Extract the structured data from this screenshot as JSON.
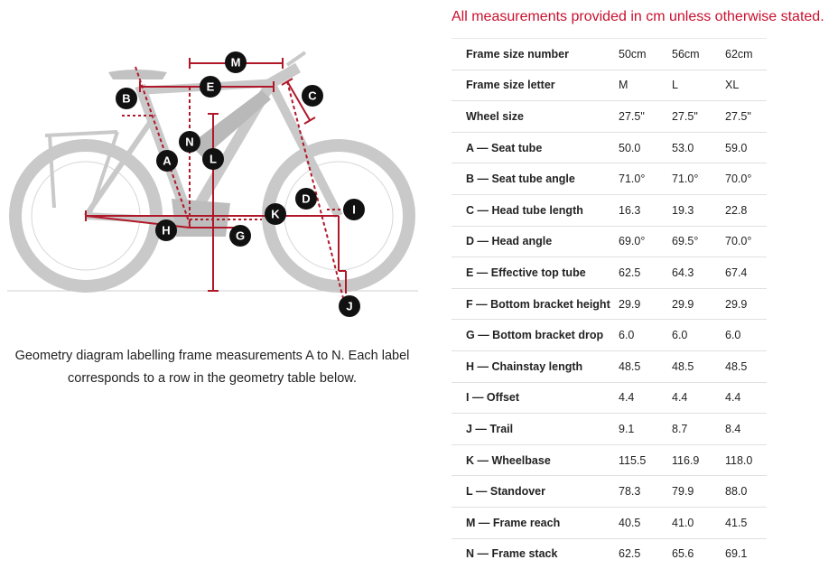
{
  "notice": "All measurements provided in cm unless otherwise stated.",
  "caption": "Geometry diagram labelling frame measurements A to N. Each label corresponds to a row in the geometry table below.",
  "colors": {
    "accent": "#c8102e",
    "measure_line": "#b0182a",
    "label_bg": "#111111",
    "bike": "#c9c9c9"
  },
  "diagram": {
    "labels": [
      "A",
      "B",
      "C",
      "D",
      "E",
      "G",
      "H",
      "I",
      "J",
      "K",
      "L",
      "M",
      "N"
    ]
  },
  "table": {
    "rows": [
      {
        "label": "Frame size number",
        "values": [
          "50cm",
          "56cm",
          "62cm"
        ]
      },
      {
        "label": "Frame size letter",
        "values": [
          "M",
          "L",
          "XL"
        ]
      },
      {
        "label": "Wheel size",
        "values": [
          "27.5\"",
          "27.5\"",
          "27.5\""
        ]
      },
      {
        "label": "A — Seat tube",
        "values": [
          "50.0",
          "53.0",
          "59.0"
        ]
      },
      {
        "label": "B — Seat tube angle",
        "values": [
          "71.0°",
          "71.0°",
          "70.0°"
        ]
      },
      {
        "label": "C — Head tube length",
        "values": [
          "16.3",
          "19.3",
          "22.8"
        ]
      },
      {
        "label": "D — Head angle",
        "values": [
          "69.0°",
          "69.5°",
          "70.0°"
        ]
      },
      {
        "label": "E — Effective top tube",
        "values": [
          "62.5",
          "64.3",
          "67.4"
        ]
      },
      {
        "label": "F — Bottom bracket height",
        "values": [
          "29.9",
          "29.9",
          "29.9"
        ]
      },
      {
        "label": "G — Bottom bracket drop",
        "values": [
          "6.0",
          "6.0",
          "6.0"
        ]
      },
      {
        "label": "H — Chainstay length",
        "values": [
          "48.5",
          "48.5",
          "48.5"
        ]
      },
      {
        "label": "I — Offset",
        "values": [
          "4.4",
          "4.4",
          "4.4"
        ]
      },
      {
        "label": "J — Trail",
        "values": [
          "9.1",
          "8.7",
          "8.4"
        ]
      },
      {
        "label": "K — Wheelbase",
        "values": [
          "115.5",
          "116.9",
          "118.0"
        ]
      },
      {
        "label": "L — Standover",
        "values": [
          "78.3",
          "79.9",
          "88.0"
        ]
      },
      {
        "label": "M — Frame reach",
        "values": [
          "40.5",
          "41.0",
          "41.5"
        ]
      },
      {
        "label": "N — Frame stack",
        "values": [
          "62.5",
          "65.6",
          "69.1"
        ]
      }
    ]
  }
}
